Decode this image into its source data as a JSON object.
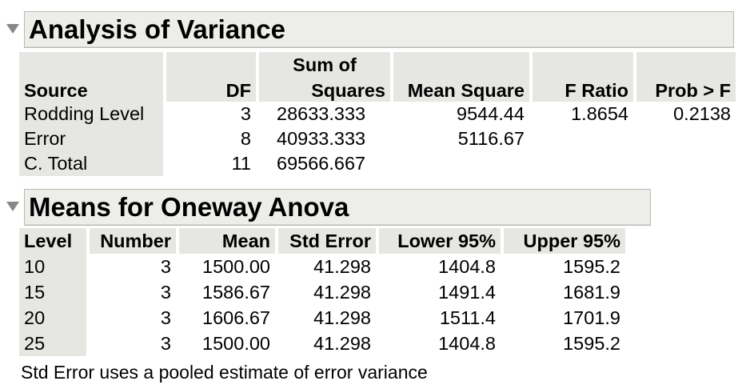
{
  "anova": {
    "title": "Analysis of Variance",
    "headers": {
      "source": "Source",
      "df": "DF",
      "ss_top": "Sum of",
      "ss_bottom": "Squares",
      "ms": "Mean Square",
      "f": "F Ratio",
      "p": "Prob > F"
    },
    "rows": [
      {
        "source": "Rodding Level",
        "df": "3",
        "ss": "28633.333",
        "ms": "9544.44",
        "f": "1.8654",
        "p": "0.2138"
      },
      {
        "source": "Error",
        "df": "8",
        "ss": "40933.333",
        "ms": "5116.67",
        "f": "",
        "p": ""
      },
      {
        "source": "C. Total",
        "df": "11",
        "ss": "69566.667",
        "ms": "",
        "f": "",
        "p": ""
      }
    ]
  },
  "means": {
    "title": "Means for Oneway Anova",
    "headers": {
      "level": "Level",
      "number": "Number",
      "mean": "Mean",
      "se": "Std Error",
      "lower": "Lower 95%",
      "upper": "Upper 95%"
    },
    "rows": [
      {
        "level": "10",
        "number": "3",
        "mean": "1500.00",
        "se": "41.298",
        "lower": "1404.8",
        "upper": "1595.2"
      },
      {
        "level": "15",
        "number": "3",
        "mean": "1586.67",
        "se": "41.298",
        "lower": "1491.4",
        "upper": "1681.9"
      },
      {
        "level": "20",
        "number": "3",
        "mean": "1606.67",
        "se": "41.298",
        "lower": "1511.4",
        "upper": "1701.9"
      },
      {
        "level": "25",
        "number": "3",
        "mean": "1500.00",
        "se": "41.298",
        "lower": "1404.8",
        "upper": "1595.2"
      }
    ],
    "note": "Std Error uses a pooled estimate of error variance"
  }
}
